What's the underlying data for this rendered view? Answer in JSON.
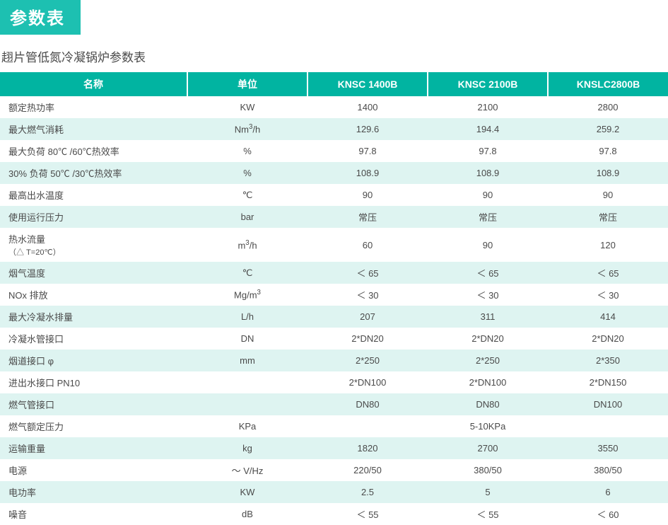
{
  "title_badge": "参数表",
  "subtitle": "趐片管低氮冷凝锅炉参数表",
  "colors": {
    "accent": "#1dc0b1",
    "header_bg": "#01b4a1",
    "row_alt": "#def4f1",
    "row_bg": "#ffffff",
    "text": "#4a4a4a"
  },
  "columns": [
    "名称",
    "单位",
    "KNSC 1400B",
    "KNSC 2100B",
    "KNSLC2800B"
  ],
  "rows": [
    {
      "name": "额定热功率",
      "unit": "KW",
      "v": [
        "1400",
        "2100",
        "2800"
      ]
    },
    {
      "name": "最大燃气消耗",
      "unit_html": "Nm<sup class='sup'>3</sup>/h",
      "v": [
        "129.6",
        "194.4",
        "259.2"
      ]
    },
    {
      "name": "最大负荷 80℃ /60℃热效率",
      "unit": "%",
      "v": [
        "97.8",
        "97.8",
        "97.8"
      ]
    },
    {
      "name": "30% 负荷 50℃ /30℃热效率",
      "unit": "%",
      "v": [
        "108.9",
        "108.9",
        "108.9"
      ]
    },
    {
      "name": "最高出水温度",
      "unit": "℃",
      "v": [
        "90",
        "90",
        "90"
      ]
    },
    {
      "name": "使用运行压力",
      "unit": "bar",
      "v": [
        "常压",
        "常压",
        "常压"
      ]
    },
    {
      "name_html": "热水流量<span class='sub-note'>（△ T=20℃）</span>",
      "unit_html": "m<sup class='sup'>3</sup>/h",
      "v": [
        "60",
        "90",
        "120"
      ]
    },
    {
      "name": "烟气温度",
      "unit": "℃",
      "v": [
        "＜ 65",
        "＜ 65",
        "＜ 65"
      ]
    },
    {
      "name": "NOx 排放",
      "unit_html": "Mg/m<sup class='sup'>3</sup>",
      "v": [
        "＜ 30",
        "＜ 30",
        "＜ 30"
      ]
    },
    {
      "name": "最大冷凝水排量",
      "unit": "L/h",
      "v": [
        "207",
        "311",
        "414"
      ]
    },
    {
      "name": "冷凝水管接口",
      "unit": "DN",
      "v": [
        "2*DN20",
        "2*DN20",
        "2*DN20"
      ]
    },
    {
      "name": "烟道接口 φ",
      "unit": "mm",
      "v": [
        "2*250",
        "2*250",
        "2*350"
      ]
    },
    {
      "name": "进出水接口 PN10",
      "unit": "",
      "v": [
        "2*DN100",
        "2*DN100",
        "2*DN150"
      ]
    },
    {
      "name": "燃气管接口",
      "unit": "",
      "v": [
        "DN80",
        "DN80",
        "DN100"
      ]
    },
    {
      "name": "燃气额定压力",
      "unit": "KPa",
      "merged": "5-10KPa"
    },
    {
      "name": "运输重量",
      "unit": "kg",
      "v": [
        "1820",
        "2700",
        "3550"
      ]
    },
    {
      "name": "电源",
      "unit": "～ V/Hz",
      "v": [
        "220/50",
        "380/50",
        "380/50"
      ]
    },
    {
      "name": "电功率",
      "unit": "KW",
      "v": [
        "2.5",
        "5",
        "6"
      ]
    },
    {
      "name": "噪音",
      "unit": "dB",
      "v": [
        "＜ 55",
        "＜ 55",
        "＜ 60"
      ]
    }
  ]
}
